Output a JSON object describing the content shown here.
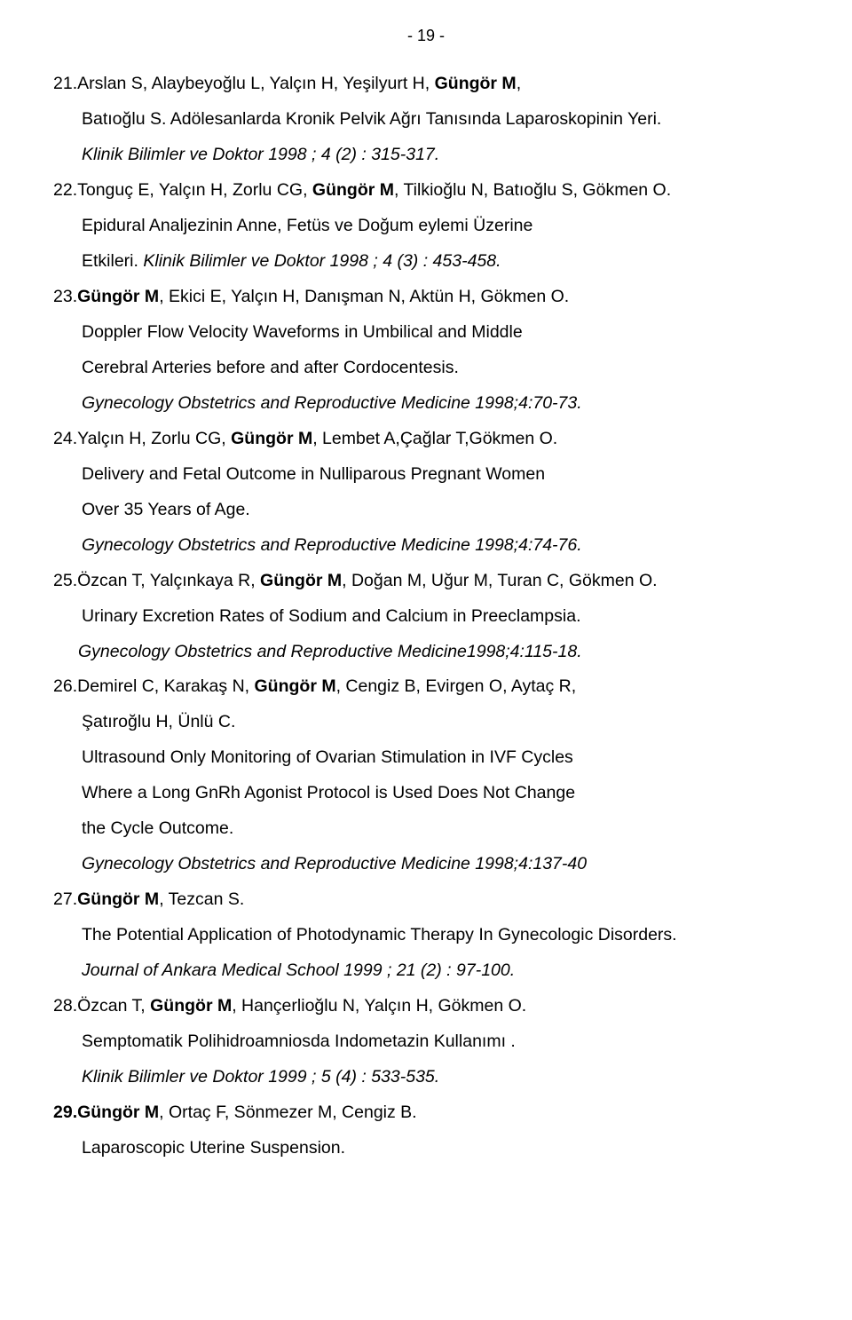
{
  "page_number": "- 19 -",
  "refs": [
    {
      "num": "21.",
      "lines": [
        {
          "cls": "",
          "segs": [
            {
              "t": "21.Arslan S, Alaybeyoğlu L, Yalçın H, Yeşilyurt H, "
            },
            {
              "t": "Güngör M",
              "b": true
            },
            {
              "t": ","
            }
          ]
        },
        {
          "cls": "indent1",
          "segs": [
            {
              "t": "Batıoğlu S. Adölesanlarda Kronik Pelvik Ağrı Tanısında Laparoskopinin Yeri."
            }
          ]
        },
        {
          "cls": "indent1",
          "segs": [
            {
              "t": "Klinik Bilimler ve Doktor  1998 ; 4 (2) : 315-317.",
              "i": true
            }
          ]
        }
      ]
    },
    {
      "num": "22.",
      "lines": [
        {
          "cls": "",
          "segs": [
            {
              "t": "22.Tonguç E, Yalçın H, Zorlu CG, "
            },
            {
              "t": "Güngör M",
              "b": true
            },
            {
              "t": ", Tilkioğlu N, Batıoğlu S, Gökmen O."
            }
          ]
        },
        {
          "cls": "indent1",
          "segs": [
            {
              "t": "Epidural Analjezinin Anne, Fetüs ve Doğum eylemi Üzerine"
            }
          ]
        },
        {
          "cls": "indent1",
          "segs": [
            {
              "t": "Etkileri. "
            },
            {
              "t": "Klinik Bilimler ve Doktor  1998 ; 4 (3) : 453-458.",
              "i": true
            }
          ]
        }
      ]
    },
    {
      "num": "23.",
      "lines": [
        {
          "cls": "",
          "segs": [
            {
              "t": "23."
            },
            {
              "t": "Güngör M",
              "b": true
            },
            {
              "t": ", Ekici E, Yalçın H, Danışman N, Aktün H, Gökmen O."
            }
          ]
        },
        {
          "cls": "indent1",
          "segs": [
            {
              "t": "Doppler Flow Velocity Waveforms in Umbilical and Middle"
            }
          ]
        },
        {
          "cls": "indent1",
          "segs": [
            {
              "t": "Cerebral Arteries before and after Cordocentesis."
            }
          ]
        },
        {
          "cls": "indent1",
          "segs": [
            {
              "t": "Gynecology Obstetrics and Reproductive Medicine  1998;4:70-73.",
              "i": true
            }
          ]
        }
      ]
    },
    {
      "num": "24.",
      "lines": [
        {
          "cls": "",
          "segs": [
            {
              "t": "24.Yalçın H, Zorlu CG, "
            },
            {
              "t": "Güngör M",
              "b": true
            },
            {
              "t": ", Lembet A,Çağlar T,Gökmen O."
            }
          ]
        },
        {
          "cls": "indent1",
          "segs": [
            {
              "t": "Delivery and Fetal Outcome in Nulliparous Pregnant Women"
            }
          ]
        },
        {
          "cls": "indent1",
          "segs": [
            {
              "t": "Over 35 Years of Age."
            }
          ]
        },
        {
          "cls": "indent1",
          "segs": [
            {
              "t": "Gynecology Obstetrics and Reproductive Medicine  1998;4:74-76.",
              "i": true
            }
          ]
        }
      ]
    },
    {
      "num": "25.",
      "lines": [
        {
          "cls": "",
          "segs": [
            {
              "t": "25.Özcan T, Yalçınkaya R, "
            },
            {
              "t": "Güngör M",
              "b": true
            },
            {
              "t": ", Doğan M, Uğur M, Turan C, Gökmen O."
            }
          ]
        },
        {
          "cls": "indent1",
          "segs": [
            {
              "t": "Urinary Excretion Rates of Sodium and Calcium in Preeclampsia."
            }
          ]
        },
        {
          "cls": "indent2",
          "segs": [
            {
              "t": "Gynecology Obstetrics and Reproductive Medicine1998;4:115-18.",
              "i": true
            }
          ]
        }
      ]
    },
    {
      "num": "26.",
      "lines": [
        {
          "cls": "",
          "segs": [
            {
              "t": "26.Demirel C, Karakaş N, "
            },
            {
              "t": "Güngör M",
              "b": true
            },
            {
              "t": ", Cengiz B, Evirgen O, Aytaç R,"
            }
          ]
        },
        {
          "cls": "indent1",
          "segs": [
            {
              "t": "Şatıroğlu H, Ünlü C."
            }
          ]
        },
        {
          "cls": "indent1",
          "segs": [
            {
              "t": "Ultrasound Only Monitoring of Ovarian Stimulation in IVF Cycles"
            }
          ]
        },
        {
          "cls": "indent1",
          "segs": [
            {
              "t": "Where a Long GnRh Agonist Protocol is Used Does Not Change"
            }
          ]
        },
        {
          "cls": "indent1",
          "segs": [
            {
              "t": "the Cycle Outcome."
            }
          ]
        },
        {
          "cls": "indent1",
          "segs": [
            {
              "t": "Gynecology Obstetrics and Reproductive Medicine 1998;4:137-40",
              "i": true
            }
          ]
        }
      ]
    },
    {
      "num": "27.",
      "lines": [
        {
          "cls": "",
          "segs": [
            {
              "t": "27."
            },
            {
              "t": "Güngör M",
              "b": true
            },
            {
              "t": ", Tezcan S."
            }
          ]
        },
        {
          "cls": "indent1",
          "segs": [
            {
              "t": "The Potential Application of Photodynamic Therapy In Gynecologic Disorders."
            }
          ]
        },
        {
          "cls": "indent1",
          "segs": [
            {
              "t": "Journal of Ankara Medical School  1999 ; 21 (2) : 97-100.",
              "i": true
            }
          ]
        }
      ]
    },
    {
      "num": "28.",
      "lines": [
        {
          "cls": "",
          "segs": [
            {
              "t": "28.Özcan T, "
            },
            {
              "t": "Güngör M",
              "b": true
            },
            {
              "t": ", Hançerlioğlu N, Yalçın H, Gökmen O."
            }
          ]
        },
        {
          "cls": "indent1",
          "segs": [
            {
              "t": "Semptomatik Polihidroamniosda Indometazin Kullanımı ."
            }
          ]
        },
        {
          "cls": "indent1",
          "segs": [
            {
              "t": "Klinik Bilimler ve Doktor  1999 ; 5 (4) : 533-535.",
              "i": true
            }
          ]
        }
      ]
    },
    {
      "num": "29.",
      "lines": [
        {
          "cls": "",
          "segs": [
            {
              "t": "29.Güngör M",
              "b": true
            },
            {
              "t": ", Ortaç F, Sönmezer M, Cengiz B."
            }
          ]
        },
        {
          "cls": "indent1",
          "segs": [
            {
              "t": "Laparoscopic Uterine Suspension."
            }
          ]
        }
      ]
    }
  ]
}
